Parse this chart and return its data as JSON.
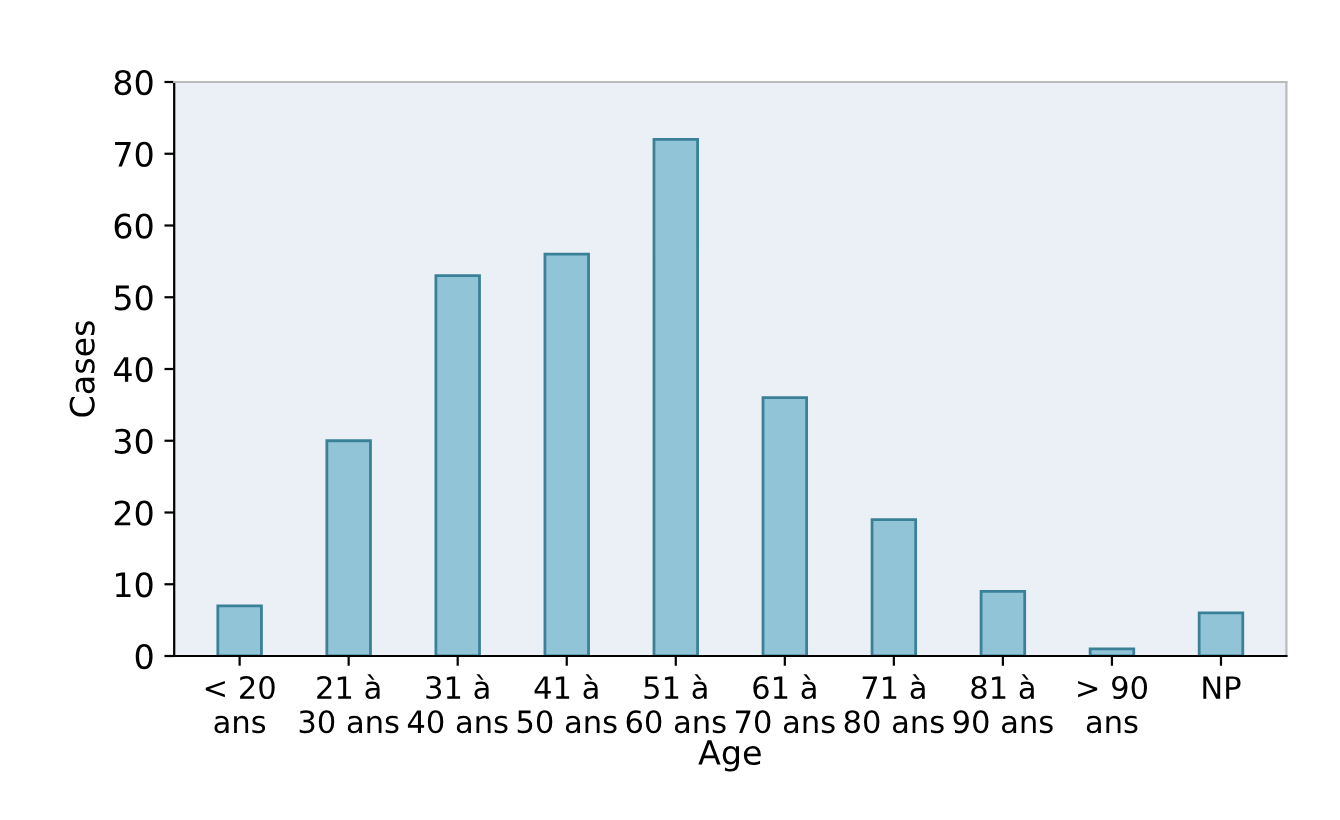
{
  "chart_data": {
    "type": "bar",
    "xlabel": "Age",
    "ylabel": "Cases",
    "categories": [
      "< 20\nans",
      "21 à\n30 ans",
      "31 à\n40 ans",
      "41 à\n50 ans",
      "51 à\n60 ans",
      "61 à\n70 ans",
      "71 à\n80 ans",
      "81 à\n90 ans",
      "> 90\nans",
      "NP"
    ],
    "values": [
      7,
      30,
      53,
      56,
      72,
      36,
      19,
      9,
      1,
      6
    ],
    "color": "#92c4d8",
    "ylim": [
      0,
      80
    ],
    "yticks": [
      0,
      10,
      20,
      30,
      40,
      50,
      60,
      70,
      80
    ],
    "grid": false
  }
}
